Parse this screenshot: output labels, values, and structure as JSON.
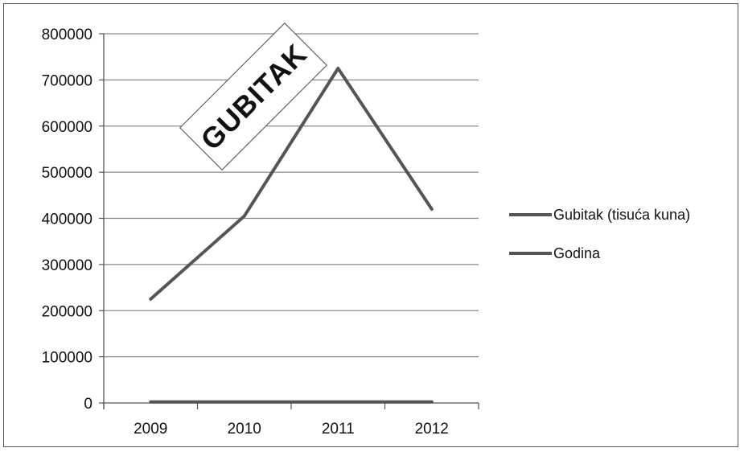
{
  "chart_data": {
    "type": "line",
    "categories": [
      "2009",
      "2010",
      "2011",
      "2012"
    ],
    "series": [
      {
        "name": "Gubitak (tisuća kuna)",
        "values": [
          225000,
          405000,
          725000,
          420000
        ],
        "color": "#555555"
      },
      {
        "name": "Godina",
        "values": [
          2009,
          2010,
          2011,
          2012
        ],
        "color": "#555555"
      }
    ],
    "ylim": [
      0,
      800000
    ],
    "yticks": [
      0,
      100000,
      200000,
      300000,
      400000,
      500000,
      600000,
      700000,
      800000
    ],
    "grid": true,
    "legend": "right",
    "annotation": "GUBITAK"
  }
}
